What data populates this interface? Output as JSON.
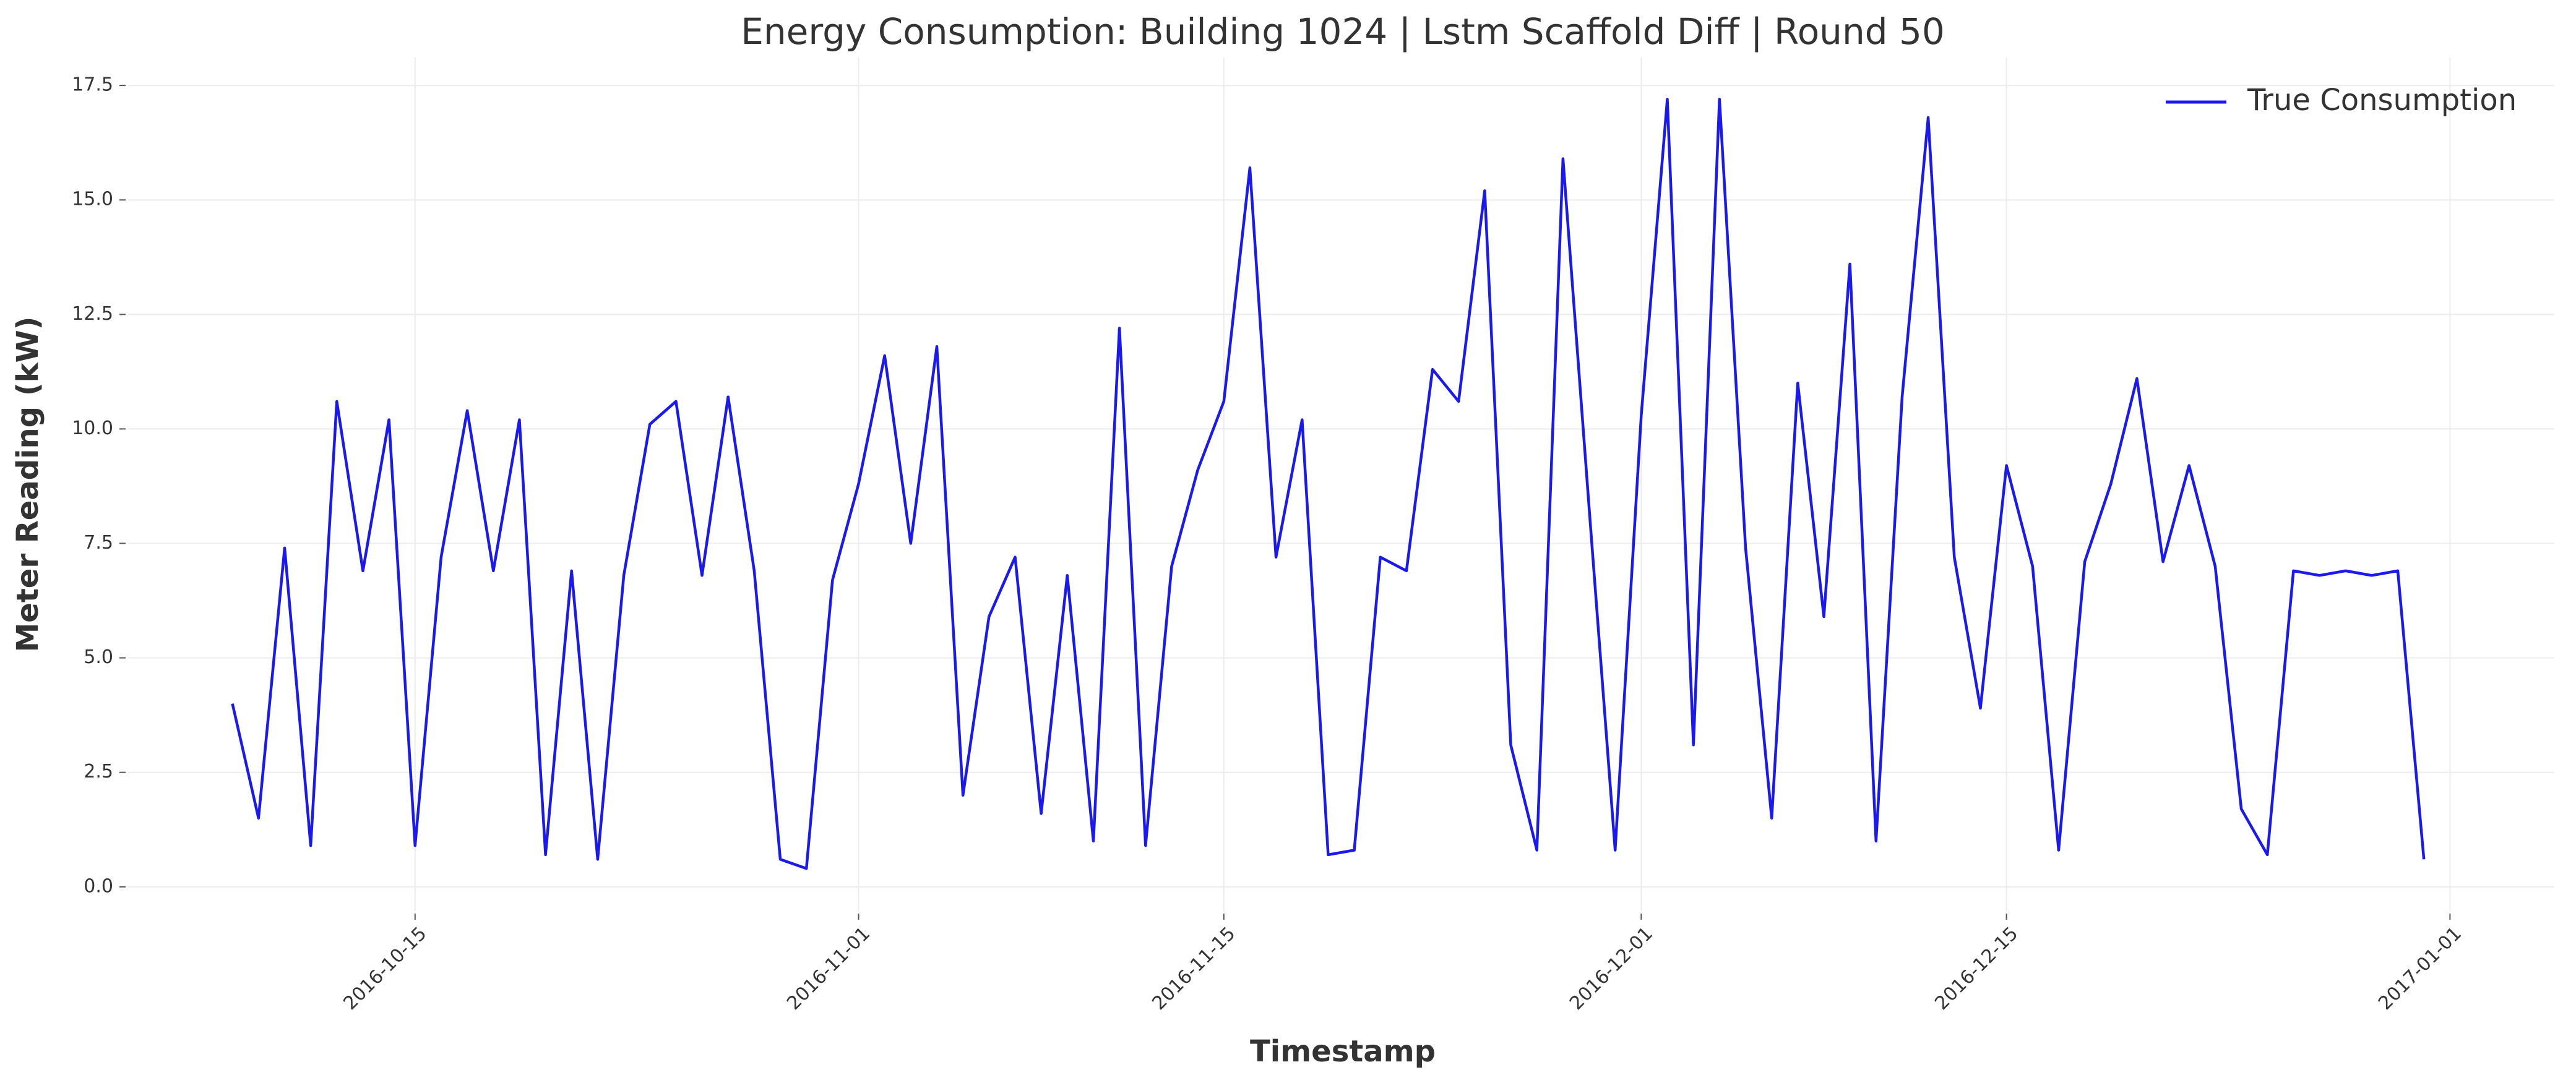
{
  "chart_data": {
    "type": "line",
    "title": "Energy Consumption: Building 1024 | Lstm Scaffold Diff | Round 50",
    "x_label": "Timestamp",
    "y_label": "Meter Reading (kW)",
    "x": [
      "2016-10-08",
      "2016-10-09",
      "2016-10-10",
      "2016-10-11",
      "2016-10-12",
      "2016-10-13",
      "2016-10-14",
      "2016-10-15",
      "2016-10-16",
      "2016-10-17",
      "2016-10-18",
      "2016-10-19",
      "2016-10-20",
      "2016-10-21",
      "2016-10-22",
      "2016-10-23",
      "2016-10-24",
      "2016-10-25",
      "2016-10-26",
      "2016-10-27",
      "2016-10-28",
      "2016-10-29",
      "2016-10-30",
      "2016-10-31",
      "2016-11-01",
      "2016-11-02",
      "2016-11-03",
      "2016-11-04",
      "2016-11-05",
      "2016-11-06",
      "2016-11-07",
      "2016-11-08",
      "2016-11-09",
      "2016-11-10",
      "2016-11-11",
      "2016-11-12",
      "2016-11-13",
      "2016-11-14",
      "2016-11-15",
      "2016-11-16",
      "2016-11-17",
      "2016-11-18",
      "2016-11-19",
      "2016-11-20",
      "2016-11-21",
      "2016-11-22",
      "2016-11-23",
      "2016-11-24",
      "2016-11-25",
      "2016-11-26",
      "2016-11-27",
      "2016-11-28",
      "2016-11-29",
      "2016-11-30",
      "2016-12-01",
      "2016-12-02",
      "2016-12-03",
      "2016-12-04",
      "2016-12-05",
      "2016-12-06",
      "2016-12-07",
      "2016-12-08",
      "2016-12-09",
      "2016-12-10",
      "2016-12-11",
      "2016-12-12",
      "2016-12-13",
      "2016-12-14",
      "2016-12-15",
      "2016-12-16",
      "2016-12-17",
      "2016-12-18",
      "2016-12-19",
      "2016-12-20",
      "2016-12-21",
      "2016-12-22",
      "2016-12-23",
      "2016-12-24",
      "2016-12-25",
      "2016-12-26",
      "2016-12-27",
      "2016-12-28",
      "2016-12-29",
      "2016-12-30",
      "2016-12-31"
    ],
    "series": [
      {
        "name": "True Consumption",
        "color": "#1a1aee",
        "values": [
          4.0,
          1.5,
          7.4,
          0.9,
          10.6,
          6.9,
          10.2,
          0.9,
          7.2,
          10.4,
          6.9,
          10.2,
          0.7,
          6.9,
          0.6,
          6.8,
          10.1,
          10.6,
          6.8,
          10.7,
          6.9,
          0.6,
          0.4,
          6.7,
          8.8,
          11.6,
          7.5,
          11.8,
          2.0,
          5.9,
          7.2,
          1.6,
          6.8,
          1.0,
          12.2,
          0.9,
          7.0,
          9.1,
          10.6,
          15.7,
          7.2,
          10.2,
          0.7,
          0.8,
          7.2,
          6.9,
          11.3,
          10.6,
          15.2,
          3.1,
          0.8,
          15.9,
          8.3,
          0.8,
          10.3,
          17.2,
          3.1,
          17.2,
          7.4,
          1.5,
          11.0,
          5.9,
          13.6,
          1.0,
          10.7,
          16.8,
          7.2,
          3.9,
          9.2,
          7.0,
          0.8,
          7.1,
          8.8,
          11.1,
          7.1,
          9.2,
          7.0,
          1.7,
          0.7,
          6.9,
          6.8,
          6.9,
          6.8,
          6.9,
          0.6
        ]
      }
    ],
    "xlim": [
      "2016-10-04",
      "2017-01-05"
    ],
    "xticks": [
      "2016-10-15",
      "2016-11-01",
      "2016-11-15",
      "2016-12-01",
      "2016-12-15",
      "2017-01-01"
    ],
    "ylim": [
      -0.53,
      18.11
    ],
    "yticks": [
      {
        "value": 0,
        "label": "0.0"
      },
      2.5,
      {
        "value": 5,
        "label": "5.0"
      },
      7.5,
      {
        "value": 10,
        "label": "10.0"
      },
      12.5,
      {
        "value": 15,
        "label": "15.0"
      },
      17.5
    ],
    "grid": true,
    "legend": "upper right"
  }
}
